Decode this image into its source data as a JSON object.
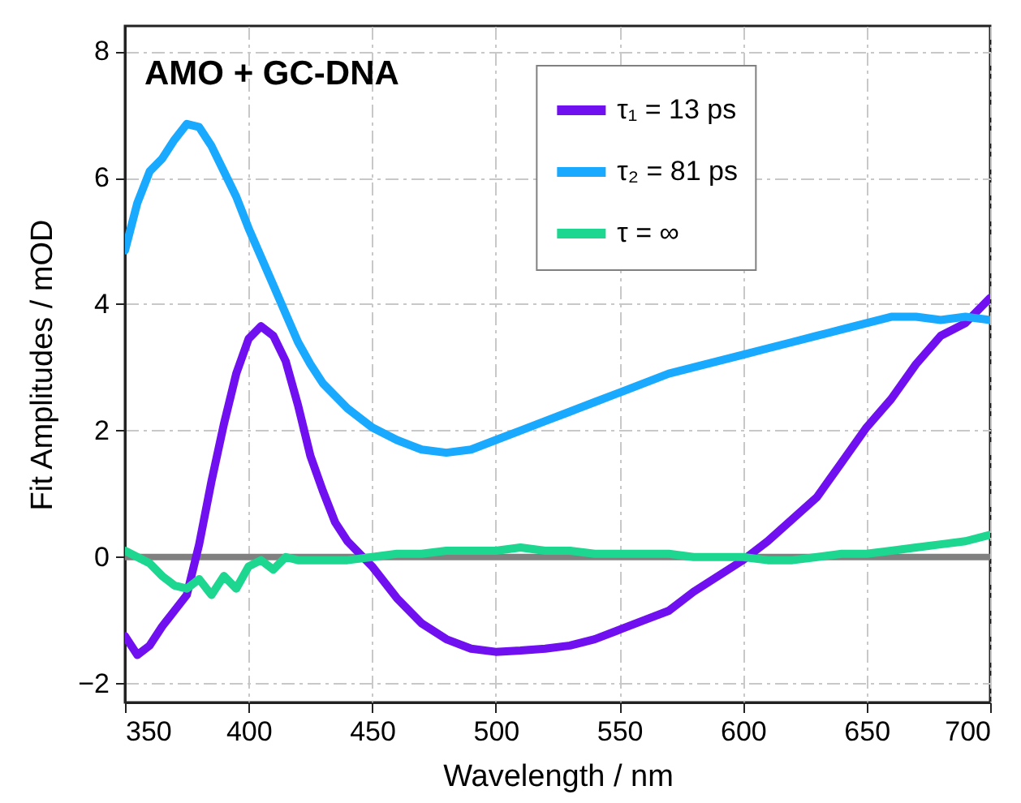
{
  "chart_data": {
    "type": "line",
    "xlabel": "Wavelength / nm",
    "ylabel": "Fit Amplitudes / mOD",
    "annotations": [
      "AMO + GC-DNA"
    ],
    "xlim": [
      350,
      700
    ],
    "xticks": [
      350,
      400,
      450,
      500,
      550,
      600,
      650,
      700
    ],
    "ylim": [
      -2.3,
      8.4
    ],
    "yticks": [
      -2,
      0,
      2,
      4,
      6,
      8
    ],
    "grid": true,
    "legend": "top right",
    "line_style": "solid",
    "ref_lines": [
      {
        "axis": "y",
        "value": 0,
        "color": "#808080"
      }
    ],
    "x": [
      350,
      355,
      360,
      365,
      370,
      375,
      380,
      385,
      390,
      395,
      400,
      405,
      410,
      415,
      420,
      425,
      430,
      435,
      440,
      450,
      460,
      470,
      480,
      490,
      500,
      510,
      520,
      530,
      540,
      550,
      560,
      570,
      580,
      590,
      600,
      610,
      620,
      630,
      640,
      650,
      660,
      670,
      680,
      690,
      700
    ],
    "series": [
      {
        "name": "τ₁ = 13 ps",
        "color": "#7010f0",
        "values": [
          -1.25,
          -1.55,
          -1.4,
          -1.1,
          -0.85,
          -0.6,
          0.2,
          1.2,
          2.1,
          2.9,
          3.45,
          3.65,
          3.5,
          3.1,
          2.4,
          1.6,
          1.05,
          0.55,
          0.25,
          -0.15,
          -0.65,
          -1.05,
          -1.3,
          -1.45,
          -1.5,
          -1.48,
          -1.45,
          -1.4,
          -1.3,
          -1.15,
          -1.0,
          -0.85,
          -0.55,
          -0.3,
          -0.05,
          0.25,
          0.6,
          0.95,
          1.5,
          2.05,
          2.5,
          3.05,
          3.5,
          3.7,
          4.1
        ]
      },
      {
        "name": "τ₂ = 81 ps",
        "color": "#19aaff",
        "values": [
          4.85,
          5.6,
          6.1,
          6.3,
          6.6,
          6.85,
          6.8,
          6.5,
          6.1,
          5.7,
          5.2,
          4.75,
          4.3,
          3.85,
          3.4,
          3.05,
          2.75,
          2.55,
          2.35,
          2.05,
          1.85,
          1.7,
          1.65,
          1.7,
          1.85,
          2.0,
          2.15,
          2.3,
          2.45,
          2.6,
          2.75,
          2.9,
          3.0,
          3.1,
          3.2,
          3.3,
          3.4,
          3.5,
          3.6,
          3.7,
          3.8,
          3.8,
          3.75,
          3.8,
          3.75
        ]
      },
      {
        "name": "τ = ∞",
        "color": "#1dd68f",
        "values": [
          0.1,
          0.0,
          -0.1,
          -0.3,
          -0.45,
          -0.5,
          -0.35,
          -0.6,
          -0.3,
          -0.5,
          -0.15,
          -0.05,
          -0.2,
          0.0,
          -0.05,
          -0.05,
          -0.05,
          -0.05,
          -0.05,
          0.0,
          0.05,
          0.05,
          0.1,
          0.1,
          0.1,
          0.15,
          0.1,
          0.1,
          0.05,
          0.05,
          0.05,
          0.05,
          0.0,
          0.0,
          0.0,
          -0.05,
          -0.05,
          0.0,
          0.05,
          0.05,
          0.1,
          0.15,
          0.2,
          0.25,
          0.35
        ]
      }
    ]
  }
}
